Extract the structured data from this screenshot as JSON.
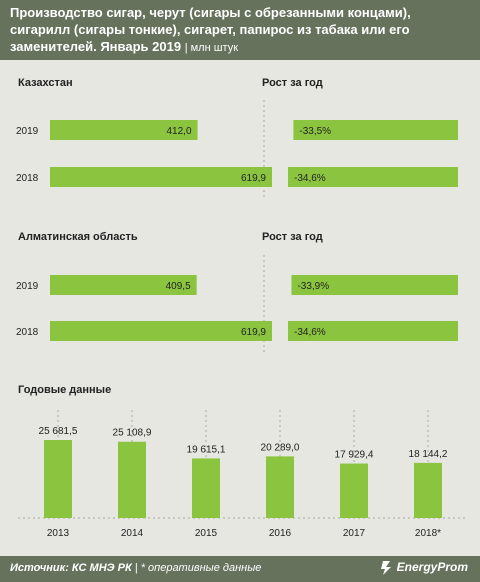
{
  "header": {
    "title": "Производство сигар, черут (сигары с обрезанными концами), сигарилл (сигары тонкие), сигарет, папирос из табака или его заменителей. Январь 2019",
    "unit": "| млн штук"
  },
  "colors": {
    "bar": "#8bc540",
    "header": "#66725c",
    "background": "#e6e7e1"
  },
  "footer": {
    "source_label": "Источник:",
    "source_value": "КС МНЭ РК",
    "note": "| * оперативные данные",
    "logo": "EnergyProm",
    "logo_icon": "energyprom-logo-icon"
  },
  "chart_data": [
    {
      "type": "bar",
      "orientation": "horizontal",
      "title": "Казахстан",
      "categories": [
        "2019",
        "2018"
      ],
      "values": [
        412.0,
        619.9
      ],
      "value_labels": [
        "412,0",
        "619,9"
      ]
    },
    {
      "type": "bar",
      "orientation": "horizontal",
      "title": "Рост за год",
      "categories": [
        "2019",
        "2018"
      ],
      "values": [
        -33.5,
        -34.6
      ],
      "value_labels": [
        "-33,5%",
        "-34,6%"
      ]
    },
    {
      "type": "bar",
      "orientation": "horizontal",
      "title": "Алматинская  область",
      "categories": [
        "2019",
        "2018"
      ],
      "values": [
        409.5,
        619.9
      ],
      "value_labels": [
        "409,5",
        "619,9"
      ]
    },
    {
      "type": "bar",
      "orientation": "horizontal",
      "title": "Рост за год",
      "categories": [
        "2019",
        "2018"
      ],
      "values": [
        -33.9,
        -34.6
      ],
      "value_labels": [
        "-33,9%",
        "-34,6%"
      ]
    },
    {
      "type": "bar",
      "orientation": "vertical",
      "title": "Годовые данные",
      "categories": [
        "2013",
        "2014",
        "2015",
        "2016",
        "2017",
        "2018*"
      ],
      "values": [
        25681.5,
        25108.9,
        19615.1,
        20289.0,
        17929.4,
        18144.2
      ],
      "value_labels": [
        "25 681,5",
        "25 108,9",
        "19 615,1",
        "20 289,0",
        "17 929,4",
        "18 144,2"
      ]
    }
  ]
}
